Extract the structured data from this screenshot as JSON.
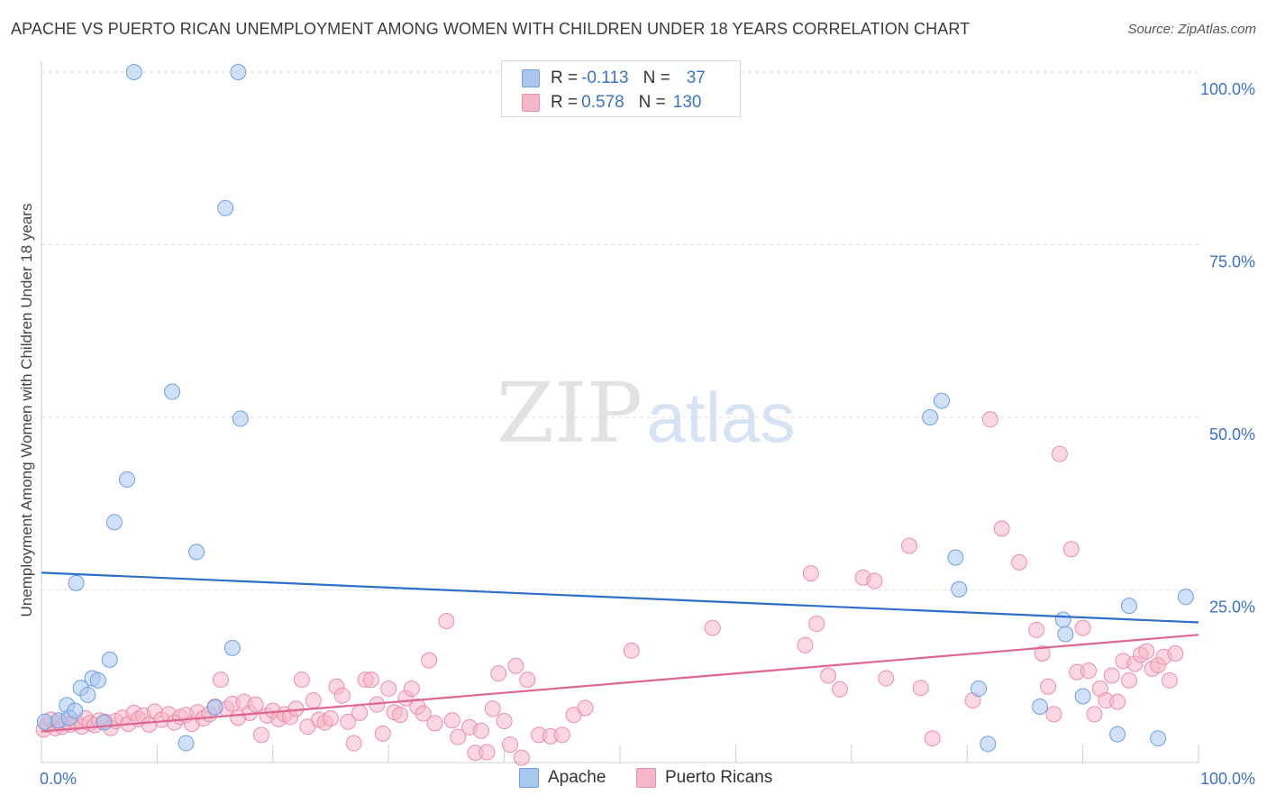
{
  "title": "APACHE VS PUERTO RICAN UNEMPLOYMENT AMONG WOMEN WITH CHILDREN UNDER 18 YEARS CORRELATION CHART",
  "source": "Source: ZipAtlas.com",
  "watermark": {
    "zip": "ZIP",
    "atlas": "atlas"
  },
  "legend": {
    "apache": {
      "r_label": "R =",
      "r_value": "-0.113",
      "n_label": "N =",
      "n_value": "37"
    },
    "puerto": {
      "r_label": "R =",
      "r_value": "0.578",
      "n_label": "N =",
      "n_value": "130"
    }
  },
  "colors": {
    "apache_fill": "#a9c7ee",
    "apache_stroke": "#6d9fe0",
    "apache_line": "#2e6fcc",
    "puerto_fill": "#f6b7c9",
    "puerto_stroke": "#e98fab",
    "puerto_line": "#e0658f",
    "tick_text": "#3b73c4",
    "grid": "#dcdcdc"
  },
  "chart_data": {
    "type": "scatter",
    "xlabel": "",
    "ylabel": "Unemployment Among Women with Children Under 18 years",
    "xlim": [
      0,
      100
    ],
    "ylim": [
      0,
      100
    ],
    "x_tick_labels": [
      "0.0%",
      "100.0%"
    ],
    "y_ticks": [
      25,
      50,
      75,
      100
    ],
    "y_tick_labels": [
      "25.0%",
      "50.0%",
      "75.0%",
      "100.0%"
    ],
    "grid": true,
    "legend_position": "top-center",
    "series": [
      {
        "name": "Apache",
        "trend": [
          [
            0,
            27.5
          ],
          [
            100,
            20.3
          ]
        ],
        "points": [
          [
            0.3,
            5.9
          ],
          [
            1.5,
            6.1
          ],
          [
            2.2,
            8.3
          ],
          [
            2.4,
            6.5
          ],
          [
            2.9,
            7.5
          ],
          [
            3.0,
            26.0
          ],
          [
            3.4,
            10.8
          ],
          [
            4.0,
            9.8
          ],
          [
            4.4,
            12.2
          ],
          [
            4.9,
            11.9
          ],
          [
            5.4,
            5.8
          ],
          [
            5.9,
            14.9
          ],
          [
            6.3,
            34.8
          ],
          [
            7.4,
            41.0
          ],
          [
            8.0,
            100.0
          ],
          [
            11.3,
            53.7
          ],
          [
            12.5,
            2.8
          ],
          [
            13.4,
            30.5
          ],
          [
            15.0,
            8.0
          ],
          [
            15.9,
            80.3
          ],
          [
            16.5,
            16.6
          ],
          [
            17.0,
            100.0
          ],
          [
            17.2,
            49.8
          ],
          [
            76.8,
            50.0
          ],
          [
            77.8,
            52.4
          ],
          [
            79.0,
            29.7
          ],
          [
            79.3,
            25.1
          ],
          [
            81.0,
            10.7
          ],
          [
            81.8,
            2.7
          ],
          [
            86.3,
            8.1
          ],
          [
            88.3,
            20.7
          ],
          [
            88.5,
            18.6
          ],
          [
            90.0,
            9.6
          ],
          [
            93.0,
            4.1
          ],
          [
            94.0,
            22.7
          ],
          [
            96.5,
            3.5
          ],
          [
            98.9,
            24.0
          ]
        ]
      },
      {
        "name": "Puerto Ricans",
        "trend": [
          [
            0,
            4.5
          ],
          [
            100,
            18.5
          ]
        ],
        "points": [
          [
            0.2,
            4.8
          ],
          [
            0.5,
            5.5
          ],
          [
            0.8,
            6.2
          ],
          [
            1.2,
            5.0
          ],
          [
            1.5,
            5.8
          ],
          [
            1.8,
            5.2
          ],
          [
            2.1,
            6.0
          ],
          [
            2.5,
            5.5
          ],
          [
            3.0,
            5.8
          ],
          [
            3.5,
            5.2
          ],
          [
            3.8,
            6.4
          ],
          [
            4.2,
            5.7
          ],
          [
            4.6,
            5.4
          ],
          [
            5.0,
            6.1
          ],
          [
            5.5,
            5.9
          ],
          [
            6.0,
            5.0
          ],
          [
            6.4,
            6.0
          ],
          [
            7.0,
            6.5
          ],
          [
            7.5,
            5.6
          ],
          [
            8.0,
            7.2
          ],
          [
            8.4,
            6.3
          ],
          [
            8.8,
            6.8
          ],
          [
            9.3,
            5.5
          ],
          [
            9.8,
            7.4
          ],
          [
            10.4,
            6.2
          ],
          [
            11.0,
            7.0
          ],
          [
            11.5,
            5.8
          ],
          [
            12.0,
            6.6
          ],
          [
            12.5,
            6.9
          ],
          [
            13.0,
            5.6
          ],
          [
            13.5,
            7.3
          ],
          [
            14.0,
            6.4
          ],
          [
            14.5,
            7.0
          ],
          [
            15.0,
            8.1
          ],
          [
            15.5,
            12.0
          ],
          [
            16.0,
            7.8
          ],
          [
            16.5,
            8.5
          ],
          [
            17.0,
            6.5
          ],
          [
            17.5,
            8.8
          ],
          [
            18.0,
            7.2
          ],
          [
            18.5,
            8.4
          ],
          [
            19.0,
            4.0
          ],
          [
            19.5,
            6.8
          ],
          [
            20.0,
            7.5
          ],
          [
            20.5,
            6.3
          ],
          [
            21.0,
            7.0
          ],
          [
            21.5,
            6.6
          ],
          [
            22.0,
            7.8
          ],
          [
            22.5,
            12.0
          ],
          [
            23.0,
            5.2
          ],
          [
            23.5,
            9.0
          ],
          [
            24.0,
            6.2
          ],
          [
            24.5,
            5.8
          ],
          [
            25.0,
            6.4
          ],
          [
            25.5,
            11.0
          ],
          [
            26.0,
            9.7
          ],
          [
            26.5,
            5.9
          ],
          [
            27.0,
            2.8
          ],
          [
            27.5,
            7.2
          ],
          [
            28.0,
            12.0
          ],
          [
            28.5,
            12.0
          ],
          [
            29.0,
            8.4
          ],
          [
            29.5,
            4.2
          ],
          [
            30.0,
            10.7
          ],
          [
            30.5,
            7.3
          ],
          [
            31.0,
            6.9
          ],
          [
            31.5,
            9.3
          ],
          [
            32.0,
            10.7
          ],
          [
            32.5,
            8.1
          ],
          [
            33.0,
            7.1
          ],
          [
            33.5,
            14.8
          ],
          [
            34.0,
            5.7
          ],
          [
            35.0,
            20.5
          ],
          [
            35.5,
            6.1
          ],
          [
            36.0,
            3.7
          ],
          [
            37.0,
            5.1
          ],
          [
            37.5,
            1.4
          ],
          [
            38.0,
            4.6
          ],
          [
            38.5,
            1.5
          ],
          [
            39.0,
            7.8
          ],
          [
            39.5,
            12.9
          ],
          [
            40.0,
            6.0
          ],
          [
            40.5,
            2.6
          ],
          [
            41.0,
            14.0
          ],
          [
            41.5,
            0.7
          ],
          [
            42.0,
            12.0
          ],
          [
            43.0,
            4.0
          ],
          [
            44.0,
            3.8
          ],
          [
            45.0,
            4.0
          ],
          [
            46.0,
            6.9
          ],
          [
            47.0,
            7.9
          ],
          [
            51.0,
            16.2
          ],
          [
            58.0,
            19.5
          ],
          [
            66.0,
            17.0
          ],
          [
            66.5,
            27.4
          ],
          [
            67.0,
            20.1
          ],
          [
            68.0,
            12.6
          ],
          [
            69.0,
            10.6
          ],
          [
            71.0,
            26.8
          ],
          [
            72.0,
            26.3
          ],
          [
            73.0,
            12.2
          ],
          [
            75.0,
            31.4
          ],
          [
            76.0,
            10.8
          ],
          [
            77.0,
            3.5
          ],
          [
            80.5,
            9.0
          ],
          [
            82.0,
            49.7
          ],
          [
            83.0,
            33.9
          ],
          [
            84.5,
            29.0
          ],
          [
            86.0,
            19.2
          ],
          [
            86.5,
            15.8
          ],
          [
            87.0,
            11.0
          ],
          [
            87.5,
            7.0
          ],
          [
            88.0,
            44.7
          ],
          [
            89.0,
            30.9
          ],
          [
            89.5,
            13.1
          ],
          [
            90.0,
            19.5
          ],
          [
            90.5,
            13.3
          ],
          [
            91.0,
            7.0
          ],
          [
            91.5,
            10.7
          ],
          [
            92.0,
            9.0
          ],
          [
            92.5,
            12.6
          ],
          [
            93.0,
            8.8
          ],
          [
            93.5,
            14.7
          ],
          [
            94.0,
            11.9
          ],
          [
            94.5,
            14.3
          ],
          [
            95.0,
            15.6
          ],
          [
            95.5,
            16.1
          ],
          [
            96.0,
            13.6
          ],
          [
            96.5,
            14.1
          ],
          [
            97.0,
            15.3
          ],
          [
            97.5,
            11.9
          ],
          [
            98.0,
            15.8
          ]
        ]
      }
    ]
  }
}
